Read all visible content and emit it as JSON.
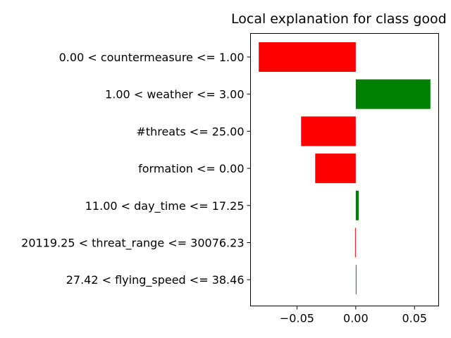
{
  "chart_data": {
    "type": "bar",
    "orientation": "horizontal",
    "title": "Local explanation for class good",
    "xlabel": "",
    "ylabel": "",
    "categories": [
      "0.00 < countermeasure <= 1.00",
      "1.00 < weather <= 3.00",
      "#threats <= 25.00",
      "formation <= 0.00",
      "11.00 < day_time <= 17.25",
      "20119.25 < threat_range <= 30076.23",
      "27.42 < flying_speed <= 38.46"
    ],
    "values": [
      -0.0825,
      0.0635,
      -0.0465,
      -0.0345,
      0.0025,
      -0.0006,
      0.0004
    ],
    "xlim": [
      -0.0895,
      0.0705
    ],
    "xticks": [
      -0.05,
      0.0,
      0.05
    ],
    "xtick_labels": [
      "−0.05",
      "0.00",
      "0.05"
    ],
    "positive_color": "#008000",
    "negative_color": "#ff0000",
    "grid": false
  }
}
